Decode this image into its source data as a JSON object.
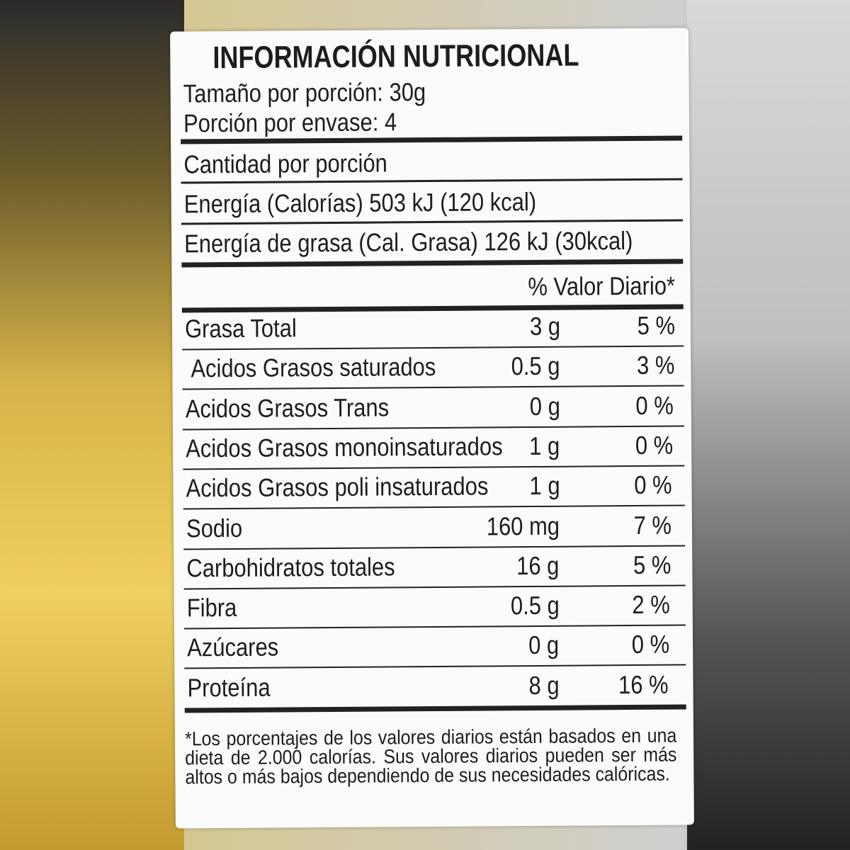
{
  "title": "INFORMACIÓN NUTRICIONAL",
  "serving_size": "Tamaño por porción: 30g",
  "servings": "Porción por envase: 4",
  "amount_header": "Cantidad por porción",
  "energy": "Energía (Calorías) 503 kJ (120 kcal)",
  "energy_fat": "Energía de grasa (Cal. Grasa) 126 kJ (30kcal)",
  "dv_header": "% Valor Diario*",
  "rows": [
    {
      "name": "Grasa Total",
      "amount": "3 g",
      "dv": "5 %"
    },
    {
      "name": "Acidos Grasos saturados",
      "amount": "0.5 g",
      "dv": "3 %"
    },
    {
      "name": "Acidos Grasos Trans",
      "amount": "0 g",
      "dv": "0 %"
    },
    {
      "name": "Acidos Grasos monoinsaturados",
      "amount": "1 g",
      "dv": "0 %"
    },
    {
      "name": "Acidos Grasos poli insaturados",
      "amount": "1 g",
      "dv": "0 %"
    },
    {
      "name": "Sodio",
      "amount": "160 mg",
      "dv": "7 %"
    },
    {
      "name": "Carbohidratos totales",
      "amount": "16 g",
      "dv": "5 %"
    },
    {
      "name": "Fibra",
      "amount": "0.5 g",
      "dv": "2 %"
    },
    {
      "name": "Azúcares",
      "amount": "0 g",
      "dv": "0 %"
    },
    {
      "name": "Proteína",
      "amount": "8 g",
      "dv": "16 %"
    }
  ],
  "footnote": "*Los porcentajes de los valores diarios están basados en una dieta de 2.000 calorías. Sus valores diarios pueden ser más altos o más bajos dependiendo de sus necesidades calóricas."
}
